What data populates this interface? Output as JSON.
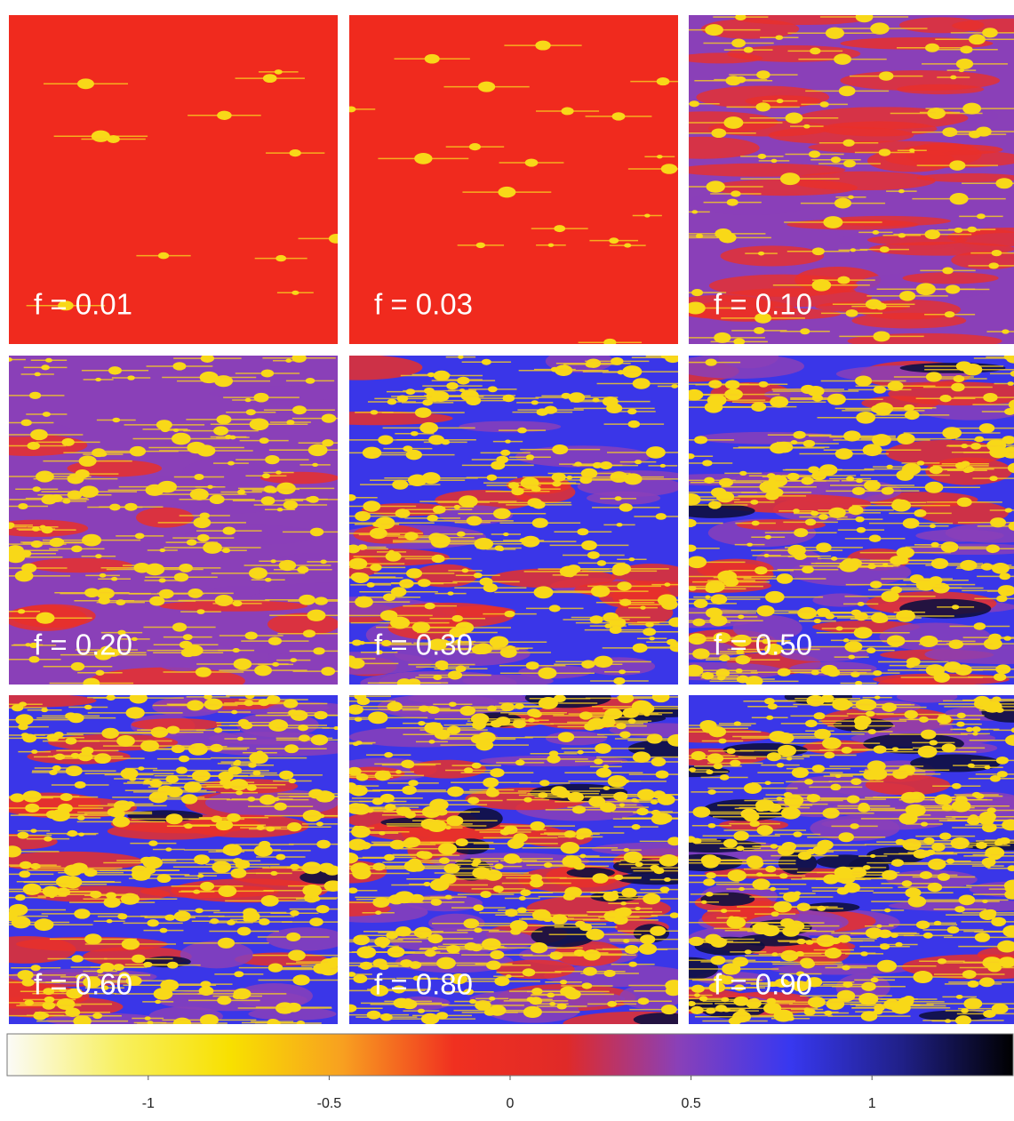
{
  "panels": [
    {
      "label": "f = 0.01"
    },
    {
      "label": "f = 0.03"
    },
    {
      "label": "f = 0.10"
    },
    {
      "label": "f = 0.20"
    },
    {
      "label": "f = 0.30"
    },
    {
      "label": "f = 0.50"
    },
    {
      "label": "f = 0.60"
    },
    {
      "label": "f = 0.80"
    },
    {
      "label": "f = 0.90"
    }
  ],
  "colorbar": {
    "lim": [
      -1.39,
      1.39
    ],
    "ticks": [
      -1,
      -0.5,
      0,
      0.5,
      1
    ],
    "colors": [
      "#fbfbf8",
      "#f8f060",
      "#f8e000",
      "#f8a020",
      "#f03020",
      "#e02a28",
      "#8a40b8",
      "#3838f0",
      "#202088",
      "#000000"
    ]
  }
}
